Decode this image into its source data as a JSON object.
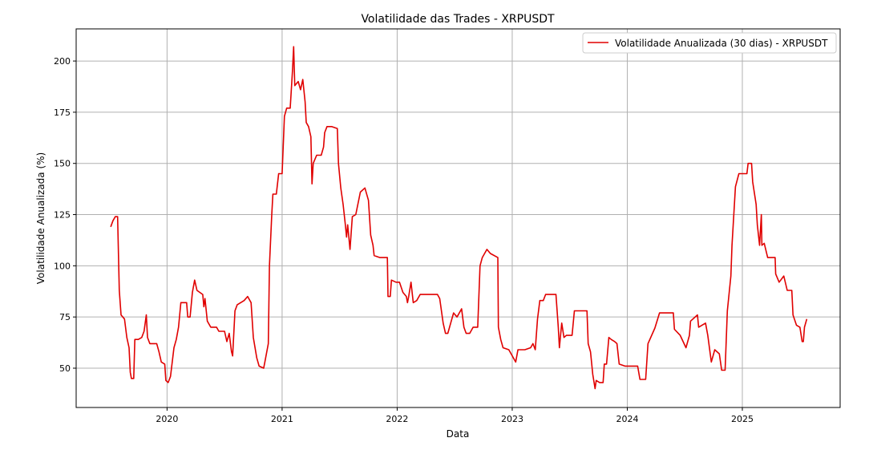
{
  "chart_data": {
    "type": "line",
    "title": "Volatilidade das Trades - XRPUSDT",
    "xlabel": "Data",
    "ylabel": "Volatilidade Anualizada (%)",
    "xlim": [
      2019.21,
      2025.85
    ],
    "ylim": [
      30.8,
      215.7
    ],
    "x_ticks": [
      2020,
      2021,
      2022,
      2023,
      2024,
      2025
    ],
    "x_tick_labels": [
      "2020",
      "2021",
      "2022",
      "2023",
      "2024",
      "2025"
    ],
    "y_ticks": [
      50,
      75,
      100,
      125,
      150,
      175,
      200
    ],
    "y_tick_labels": [
      "50",
      "75",
      "100",
      "125",
      "150",
      "175",
      "200"
    ],
    "grid": true,
    "legend_position": "top-right",
    "series": [
      {
        "name": "Volatilidade Anualizada (30 dias) - XRPUSDT",
        "color": "#e00000",
        "points": [
          [
            2019.51,
            119
          ],
          [
            2019.53,
            122
          ],
          [
            2019.55,
            124
          ],
          [
            2019.57,
            124
          ],
          [
            2019.58,
            100
          ],
          [
            2019.585,
            88
          ],
          [
            2019.6,
            76
          ],
          [
            2019.63,
            74
          ],
          [
            2019.65,
            65
          ],
          [
            2019.67,
            60
          ],
          [
            2019.68,
            48
          ],
          [
            2019.69,
            45
          ],
          [
            2019.71,
            45
          ],
          [
            2019.72,
            64
          ],
          [
            2019.75,
            64
          ],
          [
            2019.78,
            65
          ],
          [
            2019.8,
            68
          ],
          [
            2019.82,
            76
          ],
          [
            2019.83,
            65
          ],
          [
            2019.85,
            62
          ],
          [
            2019.91,
            62
          ],
          [
            2019.93,
            58
          ],
          [
            2019.95,
            53
          ],
          [
            2019.98,
            52
          ],
          [
            2019.99,
            44
          ],
          [
            2020.01,
            43
          ],
          [
            2020.03,
            46
          ],
          [
            2020.06,
            60
          ],
          [
            2020.08,
            64
          ],
          [
            2020.1,
            70
          ],
          [
            2020.12,
            82
          ],
          [
            2020.17,
            82
          ],
          [
            2020.18,
            75
          ],
          [
            2020.2,
            75
          ],
          [
            2020.22,
            87
          ],
          [
            2020.24,
            93
          ],
          [
            2020.26,
            88
          ],
          [
            2020.31,
            86
          ],
          [
            2020.32,
            80
          ],
          [
            2020.33,
            84
          ],
          [
            2020.35,
            73
          ],
          [
            2020.38,
            70
          ],
          [
            2020.43,
            70
          ],
          [
            2020.45,
            68
          ],
          [
            2020.5,
            68
          ],
          [
            2020.52,
            63
          ],
          [
            2020.54,
            67
          ],
          [
            2020.56,
            58
          ],
          [
            2020.57,
            56
          ],
          [
            2020.59,
            78
          ],
          [
            2020.61,
            81
          ],
          [
            2020.67,
            83
          ],
          [
            2020.7,
            85
          ],
          [
            2020.73,
            82
          ],
          [
            2020.75,
            65
          ],
          [
            2020.78,
            55
          ],
          [
            2020.8,
            51
          ],
          [
            2020.84,
            50
          ],
          [
            2020.85,
            53
          ],
          [
            2020.88,
            62
          ],
          [
            2020.89,
            100
          ],
          [
            2020.91,
            125
          ],
          [
            2020.92,
            135
          ],
          [
            2020.95,
            135
          ],
          [
            2020.97,
            145
          ],
          [
            2021.0,
            145
          ],
          [
            2021.02,
            173
          ],
          [
            2021.04,
            177
          ],
          [
            2021.07,
            177
          ],
          [
            2021.09,
            195
          ],
          [
            2021.1,
            207
          ],
          [
            2021.11,
            188
          ],
          [
            2021.14,
            190
          ],
          [
            2021.16,
            186
          ],
          [
            2021.18,
            191
          ],
          [
            2021.2,
            180
          ],
          [
            2021.21,
            170
          ],
          [
            2021.23,
            168
          ],
          [
            2021.25,
            163
          ],
          [
            2021.26,
            140
          ],
          [
            2021.27,
            150
          ],
          [
            2021.3,
            154
          ],
          [
            2021.34,
            154
          ],
          [
            2021.36,
            158
          ],
          [
            2021.37,
            165
          ],
          [
            2021.39,
            168
          ],
          [
            2021.43,
            168
          ],
          [
            2021.48,
            167
          ],
          [
            2021.49,
            150
          ],
          [
            2021.51,
            138
          ],
          [
            2021.53,
            130
          ],
          [
            2021.55,
            120
          ],
          [
            2021.56,
            114
          ],
          [
            2021.57,
            120
          ],
          [
            2021.59,
            108
          ],
          [
            2021.61,
            124
          ],
          [
            2021.64,
            125
          ],
          [
            2021.68,
            136
          ],
          [
            2021.72,
            138
          ],
          [
            2021.75,
            132
          ],
          [
            2021.77,
            115
          ],
          [
            2021.79,
            110
          ],
          [
            2021.8,
            105
          ],
          [
            2021.85,
            104
          ],
          [
            2021.915,
            104
          ],
          [
            2021.92,
            85
          ],
          [
            2021.94,
            85
          ],
          [
            2021.95,
            93
          ],
          [
            2021.99,
            92
          ],
          [
            2022.02,
            92
          ],
          [
            2022.05,
            87
          ],
          [
            2022.08,
            85
          ],
          [
            2022.09,
            82
          ],
          [
            2022.1,
            85
          ],
          [
            2022.12,
            92
          ],
          [
            2022.14,
            82
          ],
          [
            2022.17,
            83
          ],
          [
            2022.2,
            86
          ],
          [
            2022.26,
            86
          ],
          [
            2022.35,
            86
          ],
          [
            2022.37,
            84
          ],
          [
            2022.4,
            72
          ],
          [
            2022.42,
            67
          ],
          [
            2022.44,
            67
          ],
          [
            2022.47,
            73
          ],
          [
            2022.49,
            77
          ],
          [
            2022.52,
            75
          ],
          [
            2022.56,
            79
          ],
          [
            2022.58,
            70
          ],
          [
            2022.6,
            67
          ],
          [
            2022.63,
            67
          ],
          [
            2022.66,
            70
          ],
          [
            2022.7,
            70
          ],
          [
            2022.72,
            100
          ],
          [
            2022.74,
            104
          ],
          [
            2022.78,
            108
          ],
          [
            2022.81,
            106
          ],
          [
            2022.875,
            104
          ],
          [
            2022.88,
            70
          ],
          [
            2022.9,
            64
          ],
          [
            2022.92,
            60
          ],
          [
            2022.97,
            59
          ],
          [
            2023.01,
            55
          ],
          [
            2023.03,
            53
          ],
          [
            2023.05,
            59
          ],
          [
            2023.11,
            59
          ],
          [
            2023.16,
            60
          ],
          [
            2023.18,
            62
          ],
          [
            2023.2,
            59
          ],
          [
            2023.22,
            74
          ],
          [
            2023.24,
            83
          ],
          [
            2023.27,
            83
          ],
          [
            2023.29,
            86
          ],
          [
            2023.38,
            86
          ],
          [
            2023.4,
            70
          ],
          [
            2023.41,
            60
          ],
          [
            2023.43,
            72
          ],
          [
            2023.45,
            65
          ],
          [
            2023.47,
            66
          ],
          [
            2023.52,
            66
          ],
          [
            2023.54,
            78
          ],
          [
            2023.59,
            78
          ],
          [
            2023.65,
            78
          ],
          [
            2023.66,
            62
          ],
          [
            2023.68,
            58
          ],
          [
            2023.7,
            47
          ],
          [
            2023.72,
            40
          ],
          [
            2023.73,
            44
          ],
          [
            2023.76,
            43
          ],
          [
            2023.79,
            43
          ],
          [
            2023.8,
            52
          ],
          [
            2023.82,
            52
          ],
          [
            2023.84,
            65
          ],
          [
            2023.86,
            64
          ],
          [
            2023.89,
            63
          ],
          [
            2023.91,
            62
          ],
          [
            2023.93,
            52
          ],
          [
            2023.98,
            51
          ],
          [
            2024.09,
            51
          ],
          [
            2024.11,
            44.5
          ],
          [
            2024.16,
            44.5
          ],
          [
            2024.18,
            62
          ],
          [
            2024.24,
            69.6
          ],
          [
            2024.28,
            77
          ],
          [
            2024.4,
            77
          ],
          [
            2024.41,
            69
          ],
          [
            2024.46,
            66
          ],
          [
            2024.51,
            60
          ],
          [
            2024.54,
            66
          ],
          [
            2024.55,
            73
          ],
          [
            2024.61,
            76
          ],
          [
            2024.62,
            70
          ],
          [
            2024.68,
            72
          ],
          [
            2024.7,
            66
          ],
          [
            2024.73,
            53
          ],
          [
            2024.76,
            59
          ],
          [
            2024.8,
            57
          ],
          [
            2024.82,
            49
          ],
          [
            2024.85,
            49
          ],
          [
            2024.87,
            78
          ],
          [
            2024.9,
            95
          ],
          [
            2024.91,
            110
          ],
          [
            2024.94,
            138.6
          ],
          [
            2024.97,
            145
          ],
          [
            2025.04,
            145
          ],
          [
            2025.05,
            150
          ],
          [
            2025.08,
            150
          ],
          [
            2025.09,
            141
          ],
          [
            2025.12,
            130
          ],
          [
            2025.13,
            120
          ],
          [
            2025.15,
            110
          ],
          [
            2025.165,
            125
          ],
          [
            2025.17,
            110
          ],
          [
            2025.19,
            111
          ],
          [
            2025.22,
            104
          ],
          [
            2025.285,
            104
          ],
          [
            2025.29,
            96
          ],
          [
            2025.32,
            92
          ],
          [
            2025.36,
            95
          ],
          [
            2025.39,
            88
          ],
          [
            2025.43,
            88
          ],
          [
            2025.44,
            76
          ],
          [
            2025.47,
            71
          ],
          [
            2025.5,
            70
          ],
          [
            2025.52,
            63
          ],
          [
            2025.53,
            63
          ],
          [
            2025.54,
            70
          ],
          [
            2025.56,
            74
          ]
        ]
      }
    ]
  }
}
